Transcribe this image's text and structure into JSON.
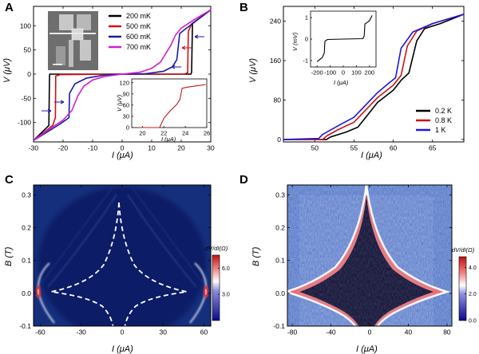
{
  "chart_data": [
    {
      "panel": "A",
      "type": "line",
      "xlabel": "I (μA)",
      "ylabel": "V (μV)",
      "xlim": [
        -30,
        30
      ],
      "ylim": [
        -140,
        140
      ],
      "xticks": [
        -30,
        -20,
        -10,
        0,
        10,
        20,
        30
      ],
      "yticks": [
        -100,
        -50,
        0,
        50,
        100
      ],
      "legend_position": "top-right",
      "series": [
        {
          "name": "200 mK",
          "color": "#000000",
          "points": [
            [
              -30,
              -137
            ],
            [
              -24.8,
              -106
            ],
            [
              -24.6,
              -5
            ],
            [
              -24.5,
              0
            ],
            [
              23.3,
              0
            ],
            [
              23.5,
              4
            ],
            [
              23.8,
              105
            ],
            [
              30,
              133
            ]
          ]
        },
        {
          "name": "500 mK",
          "color": "#d01010",
          "points": [
            [
              -30,
              -137
            ],
            [
              -23.5,
              -106
            ],
            [
              -22.6,
              -90
            ],
            [
              -22.5,
              -4
            ],
            [
              -21,
              -1
            ],
            [
              0,
              0
            ],
            [
              21,
              0
            ],
            [
              22.2,
              3
            ],
            [
              22.4,
              88
            ],
            [
              23.5,
              104
            ],
            [
              30,
              133
            ]
          ]
        },
        {
          "name": "600 mK",
          "color": "#1a1aa8",
          "points": [
            [
              -30,
              -137
            ],
            [
              -21,
              -103
            ],
            [
              -18,
              -90
            ],
            [
              -17.8,
              -40
            ],
            [
              -16,
              -20
            ],
            [
              -12,
              -8
            ],
            [
              -6,
              -2
            ],
            [
              0,
              0
            ],
            [
              8,
              1
            ],
            [
              14,
              6
            ],
            [
              17,
              15
            ],
            [
              18.5,
              30
            ],
            [
              19.5,
              84
            ],
            [
              22,
              96
            ],
            [
              30,
              133
            ]
          ]
        },
        {
          "name": "700 mK",
          "color": "#d020d0",
          "points": [
            [
              -30,
              -137
            ],
            [
              -25,
              -115
            ],
            [
              -20,
              -95
            ],
            [
              -17,
              -75
            ],
            [
              -15,
              -45
            ],
            [
              -13,
              -25
            ],
            [
              -10,
              -12
            ],
            [
              -6,
              -5
            ],
            [
              0,
              0
            ],
            [
              6,
              4
            ],
            [
              10,
              12
            ],
            [
              13,
              25
            ],
            [
              15,
              45
            ],
            [
              16.5,
              60
            ],
            [
              18,
              80
            ],
            [
              20,
              95
            ],
            [
              25,
              115
            ],
            [
              30,
              133
            ]
          ]
        }
      ],
      "inset": {
        "type": "line",
        "xlabel": "I (μA)",
        "ylabel": "V (μV)",
        "xlim": [
          19,
          26
        ],
        "ylim": [
          0,
          130
        ],
        "xticks": [
          20,
          22,
          24,
          26
        ],
        "yticks": [
          0,
          30,
          60,
          90,
          120
        ],
        "color": "#c01818",
        "points": [
          [
            19.6,
            0
          ],
          [
            21.6,
            0
          ],
          [
            22.0,
            25
          ],
          [
            22.6,
            45
          ],
          [
            23.2,
            62
          ],
          [
            23.5,
            75
          ],
          [
            23.7,
            105
          ],
          [
            24.2,
            108
          ],
          [
            25.9,
            115
          ]
        ]
      }
    },
    {
      "panel": "B",
      "type": "line",
      "xlabel": "I (μA)",
      "ylabel": "V (μV)",
      "xlim": [
        46,
        69
      ],
      "ylim": [
        -5,
        270
      ],
      "xticks": [
        50,
        55,
        60,
        65
      ],
      "yticks": [
        0,
        80,
        160,
        240
      ],
      "legend_position": "bottom-right",
      "series": [
        {
          "name": "0.2 K",
          "color": "#000000",
          "points": [
            [
              46,
              0
            ],
            [
              51.5,
              0
            ],
            [
              52,
              5
            ],
            [
              54,
              15
            ],
            [
              55.5,
              25
            ],
            [
              57,
              55
            ],
            [
              58,
              75
            ],
            [
              60,
              100
            ],
            [
              61,
              120
            ],
            [
              62,
              135
            ],
            [
              63,
              200
            ],
            [
              64,
              225
            ],
            [
              66,
              235
            ],
            [
              69,
              254
            ]
          ]
        },
        {
          "name": "0.8 K",
          "color": "#d01010",
          "points": [
            [
              46,
              0
            ],
            [
              51,
              0
            ],
            [
              51.6,
              8
            ],
            [
              53,
              20
            ],
            [
              55,
              35
            ],
            [
              56.5,
              60
            ],
            [
              58,
              85
            ],
            [
              60,
              110
            ],
            [
              61,
              130
            ],
            [
              61.8,
              190
            ],
            [
              63,
              220
            ],
            [
              65,
              235
            ],
            [
              69,
              254
            ]
          ]
        },
        {
          "name": "1 K",
          "color": "#1818e0",
          "points": [
            [
              46,
              0
            ],
            [
              50.5,
              2
            ],
            [
              51,
              10
            ],
            [
              53,
              28
            ],
            [
              55,
              45
            ],
            [
              56.5,
              70
            ],
            [
              58,
              95
            ],
            [
              59.5,
              115
            ],
            [
              60.3,
              125
            ],
            [
              61,
              185
            ],
            [
              62.5,
              218
            ],
            [
              65,
              235
            ],
            [
              69,
              254
            ]
          ]
        }
      ],
      "inset": {
        "type": "line",
        "xlabel": "I (μA)",
        "ylabel": "V (mV)",
        "xlim": [
          -250,
          250
        ],
        "ylim": [
          -1.3,
          1.3
        ],
        "xticks": [
          -200,
          -100,
          0,
          100,
          200
        ],
        "yticks": [
          -1,
          0,
          1
        ],
        "color": "#000000",
        "points": [
          [
            -200,
            -1.05
          ],
          [
            -160,
            -0.85
          ],
          [
            -145,
            -0.65
          ],
          [
            -140,
            -0.1
          ],
          [
            -120,
            -0.02
          ],
          [
            0,
            0
          ],
          [
            150,
            0.02
          ],
          [
            160,
            0.15
          ],
          [
            165,
            0.7
          ],
          [
            200,
            0.85
          ],
          [
            220,
            1.1
          ]
        ]
      }
    },
    {
      "panel": "C",
      "type": "heatmap",
      "xlabel": "I (μA)",
      "ylabel": "B (T)",
      "xlim": [
        -65,
        65
      ],
      "ylim": [
        -0.1,
        0.33
      ],
      "xticks": [
        -60,
        -30,
        0,
        30,
        60
      ],
      "yticks": [
        -0.1,
        0.0,
        0.1,
        0.2,
        0.3
      ],
      "colorbar": {
        "label": "dV/dI(Ω)",
        "min": 0,
        "max": 7.5,
        "ticks": [
          3.0,
          6.0
        ],
        "colors": [
          "#0a0a8a",
          "#ffffff",
          "#d01010"
        ]
      },
      "overlay": "dashed white critical-current contour"
    },
    {
      "panel": "D",
      "type": "heatmap",
      "xlabel": "I (μA)",
      "ylabel": "B (T)",
      "xlim": [
        -85,
        85
      ],
      "ylim": [
        -0.1,
        0.33
      ],
      "xticks": [
        -80,
        -40,
        0,
        40,
        80
      ],
      "yticks": [
        -0.1,
        0.0,
        0.1,
        0.2,
        0.3
      ],
      "colorbar": {
        "label": "dV/dI(Ω)",
        "min": 0,
        "max": 4.8,
        "ticks": [
          0.0,
          2.0,
          4.0
        ],
        "colors": [
          "#0a0a8a",
          "#ffffff",
          "#d01010"
        ]
      }
    }
  ],
  "labels": {
    "a": "A",
    "b": "B",
    "c": "C",
    "d": "D"
  }
}
